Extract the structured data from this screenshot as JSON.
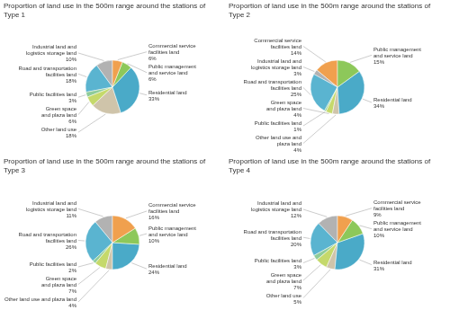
{
  "chart_data": [
    {
      "type": "pie",
      "title": "Proportion of land use in the 500m range around the stations of Type 1",
      "categories": [
        "Industrial land and\nlogistics storage land\n10%",
        "Road and transportation\nfacilities land\n18%",
        "Public facilities land\n3%",
        "Green space\nand plaza land\n6%",
        "Other land use\n18%",
        "Residential land\n33%",
        "Public management\nand service land\n6%",
        "Commercial service\nfacilities land\n6%"
      ],
      "values": [
        10,
        18,
        3,
        6,
        18,
        33,
        6,
        6
      ],
      "colors": [
        "#b2b2b2",
        "#5ab4d0",
        "#8fcc9a",
        "#c5d96b",
        "#cfc4aa",
        "#4aaac8",
        "#8dc85a",
        "#f0a04e"
      ]
    },
    {
      "type": "pie",
      "title": "Proportion of land use in the 500m range around the stations of Type 2",
      "categories": [
        "Commercial service\nfacilities land\n14%",
        "Industrial land and\nlogistics storage land\n3%",
        "Road and transportation\nfacilities land\n25%",
        "Public facilities land\n1%",
        "Green space\nand plaza land\n4%",
        "Other land use and\nplaza land\n4%",
        "Residential land\n34%",
        "Public management\nand service land\n15%"
      ],
      "values": [
        14,
        3,
        25,
        1,
        4,
        4,
        34,
        15
      ],
      "colors": [
        "#f0a04e",
        "#b2b2b2",
        "#5ab4d0",
        "#8fcc9a",
        "#c5d96b",
        "#cfc4aa",
        "#4aaac8",
        "#8dc85a"
      ]
    },
    {
      "type": "pie",
      "title": "Proportion of land use in the 500m range around the stations of Type 3",
      "categories": [
        "Industrial land and\nlogistics storage land\n11%",
        "Road and transportation\nfacilities land\n26%",
        "Public facilities land\n2%",
        "Green space\nand plaza land\n7%",
        "Other land use and plaza land\n4%",
        "Residential land\n24%",
        "Public management\nand service land\n10%",
        "Commercial service\nfacilities land\n16%"
      ],
      "values": [
        11,
        26,
        2,
        7,
        4,
        24,
        10,
        16
      ],
      "colors": [
        "#b2b2b2",
        "#5ab4d0",
        "#8fcc9a",
        "#c5d96b",
        "#cfc4aa",
        "#4aaac8",
        "#8dc85a",
        "#f0a04e"
      ]
    },
    {
      "type": "pie",
      "title": "Proportion of land use in the 500m range around the stations of Type 4",
      "categories": [
        "Industrial land and\nlogistics storage land\n12%",
        "Road and transportation\nfacilities land\n20%",
        "Public facilities land\n3%",
        "Green space\nand plaza land\n7%",
        "Other land use\n5%",
        "Residential land\n31%",
        "Public management\nand service land\n10%",
        "Commercial service\nfacilities land\n9%"
      ],
      "values": [
        12,
        20,
        3,
        7,
        5,
        31,
        10,
        9
      ],
      "colors": [
        "#b2b2b2",
        "#5ab4d0",
        "#8fcc9a",
        "#c5d96b",
        "#cfc4aa",
        "#4aaac8",
        "#8dc85a",
        "#f0a04e"
      ]
    }
  ]
}
